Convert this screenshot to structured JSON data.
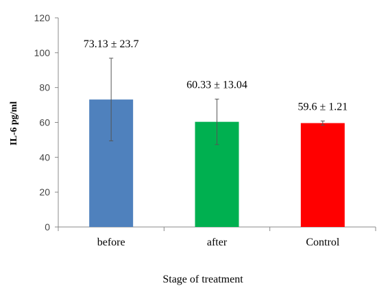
{
  "chart_data": {
    "type": "bar",
    "categories": [
      "before",
      "after",
      "Control"
    ],
    "values": [
      73.13,
      60.33,
      59.6
    ],
    "errors": [
      23.7,
      13.04,
      1.21
    ],
    "data_labels": [
      "73.13 ± 23.7",
      "60.33 ± 13.04",
      "59.6 ± 1.21"
    ],
    "colors": [
      "#4f81bd",
      "#00b050",
      "#ff0000"
    ],
    "xlabel": "Stage of treatment",
    "ylabel": "IL-6 pg/ml",
    "ylim": [
      0,
      120
    ],
    "yticks": [
      0,
      20,
      40,
      60,
      80,
      100,
      120
    ],
    "grid": false,
    "legend": "none"
  }
}
